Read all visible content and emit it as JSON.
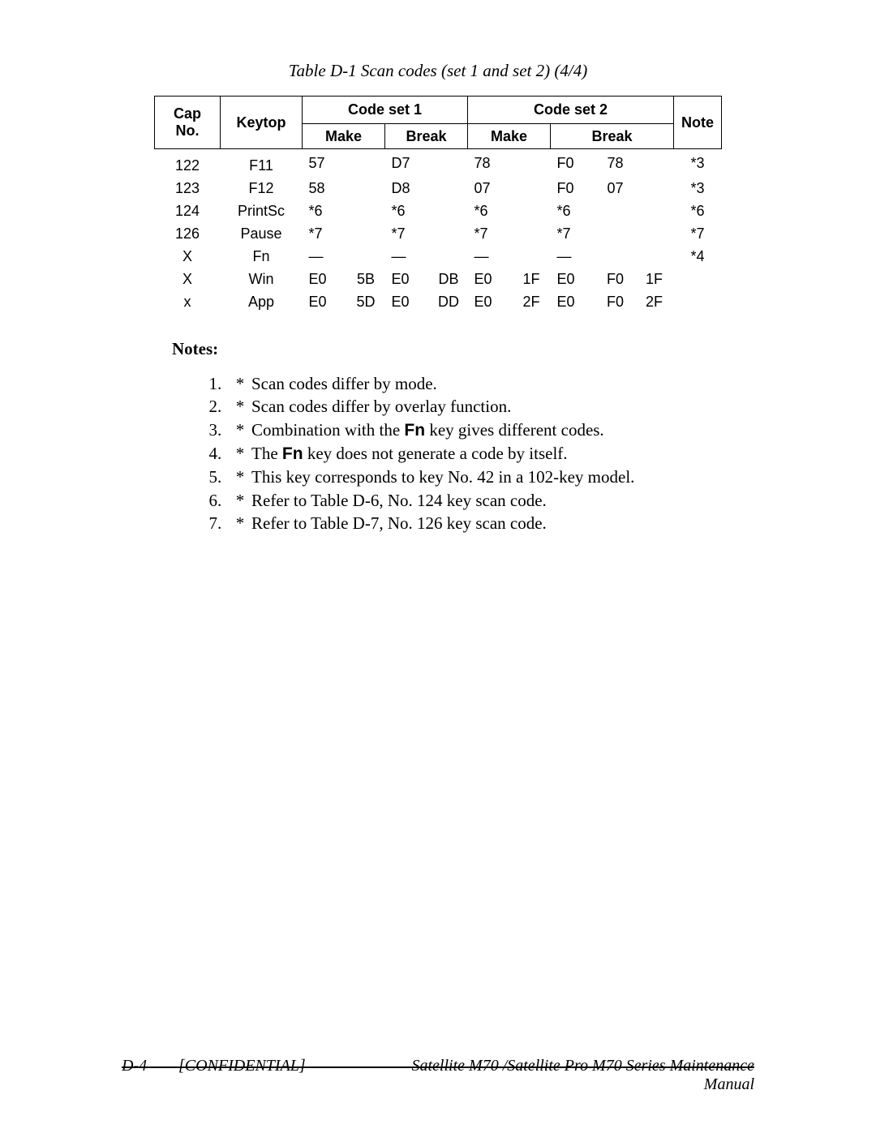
{
  "caption": "Table D-1  Scan codes (set 1 and set 2) (4/4)",
  "table": {
    "headers": {
      "cap_no_line1": "Cap",
      "cap_no_line2": "No.",
      "keytop": "Keytop",
      "set1": "Code set 1",
      "set2": "Code set 2",
      "make": "Make",
      "break": "Break",
      "note": "Note"
    },
    "rows": [
      {
        "cap": "122",
        "keytop": "F11",
        "s1m1": "57",
        "s1m2": "",
        "s1b1": "D7",
        "s1b2": "",
        "s2m1": "78",
        "s2m2": "",
        "s2b1": "F0",
        "s2b2": "78",
        "s2b3": "",
        "note": "*3"
      },
      {
        "cap": "123",
        "keytop": "F12",
        "s1m1": "58",
        "s1m2": "",
        "s1b1": "D8",
        "s1b2": "",
        "s2m1": "07",
        "s2m2": "",
        "s2b1": "F0",
        "s2b2": "07",
        "s2b3": "",
        "note": "*3"
      },
      {
        "cap": "124",
        "keytop": "PrintSc",
        "s1m1": "*6",
        "s1m2": "",
        "s1b1": "*6",
        "s1b2": "",
        "s2m1": "*6",
        "s2m2": "",
        "s2b1": "*6",
        "s2b2": "",
        "s2b3": "",
        "note": "*6"
      },
      {
        "cap": "126",
        "keytop": "Pause",
        "s1m1": "*7",
        "s1m2": "",
        "s1b1": "*7",
        "s1b2": "",
        "s2m1": "*7",
        "s2m2": "",
        "s2b1": "*7",
        "s2b2": "",
        "s2b3": "",
        "note": "*7"
      },
      {
        "cap": "X",
        "keytop": "Fn",
        "s1m1": "—",
        "s1m2": "",
        "s1b1": "—",
        "s1b2": "",
        "s2m1": "—",
        "s2m2": "",
        "s2b1": "—",
        "s2b2": "",
        "s2b3": "",
        "note": "*4"
      },
      {
        "cap": "X",
        "keytop": "Win",
        "s1m1": "E0",
        "s1m2": "5B",
        "s1b1": "E0",
        "s1b2": "DB",
        "s2m1": "E0",
        "s2m2": "1F",
        "s2b1": "E0",
        "s2b2": "F0",
        "s2b3": "1F",
        "note": ""
      },
      {
        "cap": "x",
        "keytop": "App",
        "s1m1": "E0",
        "s1m2": "5D",
        "s1b1": "E0",
        "s1b2": "DD",
        "s2m1": "E0",
        "s2m2": "2F",
        "s2b1": "E0",
        "s2b2": "F0",
        "s2b3": "2F",
        "note": ""
      }
    ],
    "col_widths": {
      "half": 47,
      "third": 48
    }
  },
  "notes": {
    "heading": "Notes:",
    "items": [
      {
        "n": "1",
        "text": "Scan codes differ by mode."
      },
      {
        "n": "2",
        "text": "Scan codes differ by overlay function."
      },
      {
        "n": "3",
        "pre": "Combination with the ",
        "fn": "Fn",
        "post": " key gives different codes."
      },
      {
        "n": "4",
        "pre": "The ",
        "fn": "Fn",
        "post": " key does not generate a code by itself."
      },
      {
        "n": "5",
        "text": "This key corresponds to key No. 42 in a 102-key model."
      },
      {
        "n": "6",
        "text": "Refer to Table D-6, No. 124 key scan code."
      },
      {
        "n": "7",
        "text": "Refer to Table D-7, No. 126 key scan code."
      }
    ]
  },
  "footer": {
    "page": "D-4",
    "confidential": "[CONFIDENTIAL]",
    "manual": "Satellite M70 /Satellite Pro M70 Series Maintenance Manual"
  }
}
